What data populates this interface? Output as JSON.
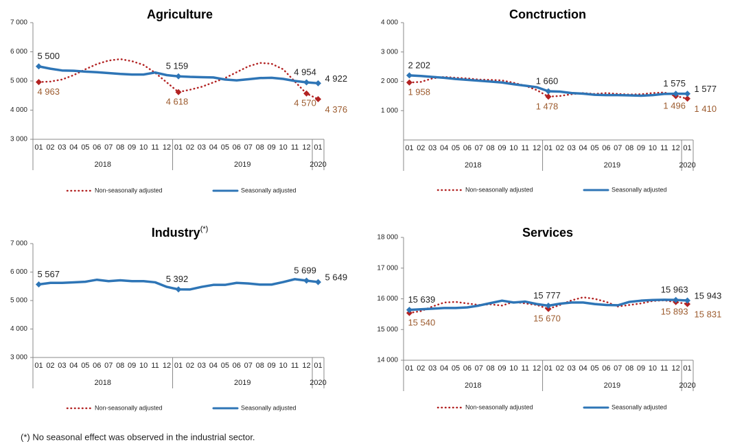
{
  "chart_data": [
    {
      "type": "line",
      "title": "Agriculture",
      "category_groups": [
        {
          "label": "2018",
          "categories": [
            "01",
            "02",
            "03",
            "04",
            "05",
            "06",
            "07",
            "08",
            "09",
            "10",
            "11",
            "12"
          ]
        },
        {
          "label": "2019",
          "categories": [
            "01",
            "02",
            "03",
            "04",
            "05",
            "06",
            "07",
            "08",
            "09",
            "10",
            "11",
            "12"
          ]
        },
        {
          "label": "2020",
          "categories": [
            "01"
          ]
        }
      ],
      "ylim": [
        3000,
        7000
      ],
      "yticks": [
        {
          "value": 3000,
          "label": "3 000"
        },
        {
          "value": 4000,
          "label": "4 000"
        },
        {
          "value": 5000,
          "label": "5 000"
        },
        {
          "value": 6000,
          "label": "6 000"
        },
        {
          "value": 7000,
          "label": "7 000"
        }
      ],
      "grid": false,
      "legend": "bottom",
      "series": [
        {
          "name": "Non-seasonally adjusted",
          "color": "#b22222",
          "style": "dotted",
          "label_color": "#9c5b2e",
          "values": [
            4963,
            4980,
            5050,
            5200,
            5400,
            5580,
            5700,
            5750,
            5680,
            5550,
            5280,
            4950,
            4618,
            4700,
            4800,
            4950,
            5100,
            5300,
            5500,
            5620,
            5590,
            5400,
            4980,
            4570,
            4376
          ],
          "value_labels": [
            "4 963",
            null,
            null,
            null,
            null,
            null,
            null,
            null,
            null,
            null,
            null,
            null,
            "4 618",
            null,
            null,
            null,
            null,
            null,
            null,
            null,
            null,
            null,
            null,
            "4 570",
            "4 376"
          ]
        },
        {
          "name": "Seasonally adjusted",
          "color": "#2e75b6",
          "style": "solid",
          "label_color": "#222222",
          "values": [
            5500,
            5420,
            5360,
            5350,
            5320,
            5300,
            5270,
            5240,
            5220,
            5220,
            5290,
            5200,
            5159,
            5140,
            5130,
            5120,
            5050,
            5020,
            5060,
            5100,
            5110,
            5070,
            5000,
            4954,
            4922
          ],
          "value_labels": [
            "5 500",
            null,
            null,
            null,
            null,
            null,
            null,
            null,
            null,
            null,
            null,
            null,
            "5 159",
            null,
            null,
            null,
            null,
            null,
            null,
            null,
            null,
            null,
            null,
            "4 954",
            "4 922"
          ]
        }
      ]
    },
    {
      "type": "line",
      "title": "Conctruction",
      "category_groups": [
        {
          "label": "2018",
          "categories": [
            "01",
            "02",
            "03",
            "04",
            "05",
            "06",
            "07",
            "08",
            "09",
            "10",
            "11",
            "12"
          ]
        },
        {
          "label": "2019",
          "categories": [
            "01",
            "02",
            "03",
            "04",
            "05",
            "06",
            "07",
            "08",
            "09",
            "10",
            "11",
            "12"
          ]
        },
        {
          "label": "2020",
          "categories": [
            "01"
          ]
        }
      ],
      "ylim": [
        0,
        4000
      ],
      "yticks": [
        {
          "value": 1000,
          "label": "1 000"
        },
        {
          "value": 2000,
          "label": "2 000"
        },
        {
          "value": 3000,
          "label": "3 000"
        },
        {
          "value": 4000,
          "label": "4 000"
        }
      ],
      "grid": false,
      "legend": "bottom",
      "series": [
        {
          "name": "Non-seasonally adjusted",
          "color": "#b22222",
          "style": "dotted",
          "label_color": "#9c5b2e",
          "values": [
            1958,
            1980,
            2100,
            2150,
            2120,
            2100,
            2060,
            2050,
            2030,
            1950,
            1850,
            1700,
            1478,
            1500,
            1560,
            1600,
            1570,
            1600,
            1570,
            1550,
            1560,
            1600,
            1620,
            1496,
            1410
          ],
          "value_labels": [
            "1 958",
            null,
            null,
            null,
            null,
            null,
            null,
            null,
            null,
            null,
            null,
            null,
            "1 478",
            null,
            null,
            null,
            null,
            null,
            null,
            null,
            null,
            null,
            null,
            "1 496",
            "1 410"
          ]
        },
        {
          "name": "Seasonally adjusted",
          "color": "#2e75b6",
          "style": "solid",
          "label_color": "#222222",
          "values": [
            2202,
            2180,
            2150,
            2120,
            2080,
            2050,
            2020,
            1990,
            1960,
            1900,
            1850,
            1800,
            1660,
            1650,
            1600,
            1580,
            1540,
            1530,
            1530,
            1520,
            1510,
            1530,
            1570,
            1575,
            1577
          ],
          "value_labels": [
            "2 202",
            null,
            null,
            null,
            null,
            null,
            null,
            null,
            null,
            null,
            null,
            null,
            "1 660",
            null,
            null,
            null,
            null,
            null,
            null,
            null,
            null,
            null,
            null,
            "1 575",
            "1 577"
          ]
        }
      ]
    },
    {
      "type": "line",
      "title": "Industry",
      "title_note": "(*)",
      "category_groups": [
        {
          "label": "2018",
          "categories": [
            "01",
            "02",
            "03",
            "04",
            "05",
            "06",
            "07",
            "08",
            "09",
            "10",
            "11",
            "12"
          ]
        },
        {
          "label": "2019",
          "categories": [
            "01",
            "02",
            "03",
            "04",
            "05",
            "06",
            "07",
            "08",
            "09",
            "10",
            "11",
            "12"
          ]
        },
        {
          "label": "2020",
          "categories": [
            "01"
          ]
        }
      ],
      "ylim": [
        3000,
        7000
      ],
      "yticks": [
        {
          "value": 3000,
          "label": "3 000"
        },
        {
          "value": 4000,
          "label": "4 000"
        },
        {
          "value": 5000,
          "label": "5 000"
        },
        {
          "value": 6000,
          "label": "6 000"
        },
        {
          "value": 7000,
          "label": "7 000"
        }
      ],
      "grid": false,
      "legend": "bottom",
      "series": [
        {
          "name": "Non-seasonally adjusted",
          "color": "#b22222",
          "style": "dotted",
          "label_color": "#9c5b2e",
          "values": [
            5567,
            5620,
            5620,
            5640,
            5660,
            5730,
            5680,
            5710,
            5680,
            5680,
            5640,
            5480,
            5392,
            5390,
            5480,
            5550,
            5550,
            5620,
            5600,
            5560,
            5560,
            5650,
            5750,
            5699,
            5649
          ],
          "value_labels": [
            null,
            null,
            null,
            null,
            null,
            null,
            null,
            null,
            null,
            null,
            null,
            null,
            null,
            null,
            null,
            null,
            null,
            null,
            null,
            null,
            null,
            null,
            null,
            null,
            null
          ]
        },
        {
          "name": "Seasonally adjusted",
          "color": "#2e75b6",
          "style": "solid",
          "label_color": "#222222",
          "values": [
            5567,
            5620,
            5620,
            5640,
            5660,
            5730,
            5680,
            5710,
            5680,
            5680,
            5640,
            5480,
            5392,
            5390,
            5480,
            5550,
            5550,
            5620,
            5600,
            5560,
            5560,
            5650,
            5750,
            5699,
            5649
          ],
          "value_labels": [
            "5 567",
            null,
            null,
            null,
            null,
            null,
            null,
            null,
            null,
            null,
            null,
            null,
            "5 392",
            null,
            null,
            null,
            null,
            null,
            null,
            null,
            null,
            null,
            null,
            "5 699",
            "5 649"
          ]
        }
      ]
    },
    {
      "type": "line",
      "title": "Services",
      "category_groups": [
        {
          "label": "2018",
          "categories": [
            "01",
            "02",
            "03",
            "04",
            "05",
            "06",
            "07",
            "08",
            "09",
            "10",
            "11",
            "12"
          ]
        },
        {
          "label": "2019",
          "categories": [
            "01",
            "02",
            "03",
            "04",
            "05",
            "06",
            "07",
            "08",
            "09",
            "10",
            "11",
            "12"
          ]
        },
        {
          "label": "2020",
          "categories": [
            "01"
          ]
        }
      ],
      "ylim": [
        14000,
        18000
      ],
      "yticks": [
        {
          "value": 14000,
          "label": "14 000"
        },
        {
          "value": 15000,
          "label": "15 000"
        },
        {
          "value": 16000,
          "label": "16 000"
        },
        {
          "value": 17000,
          "label": "17 000"
        },
        {
          "value": 18000,
          "label": "18 000"
        }
      ],
      "grid": false,
      "legend": "bottom",
      "series": [
        {
          "name": "Non-seasonally adjusted",
          "color": "#b22222",
          "style": "dotted",
          "label_color": "#9c5b2e",
          "values": [
            15540,
            15600,
            15750,
            15880,
            15900,
            15850,
            15800,
            15820,
            15780,
            15900,
            15850,
            15800,
            15670,
            15800,
            15950,
            16050,
            16000,
            15900,
            15750,
            15800,
            15850,
            15930,
            15950,
            15893,
            15831
          ],
          "value_labels": [
            "15 540",
            null,
            null,
            null,
            null,
            null,
            null,
            null,
            null,
            null,
            null,
            null,
            "15 670",
            null,
            null,
            null,
            null,
            null,
            null,
            null,
            null,
            null,
            null,
            "15 893",
            "15 831"
          ]
        },
        {
          "name": "Seasonally adjusted",
          "color": "#2e75b6",
          "style": "solid",
          "label_color": "#222222",
          "values": [
            15639,
            15660,
            15680,
            15700,
            15700,
            15720,
            15780,
            15860,
            15940,
            15880,
            15910,
            15830,
            15777,
            15840,
            15880,
            15880,
            15830,
            15800,
            15790,
            15900,
            15940,
            15960,
            15970,
            15963,
            15943
          ],
          "value_labels": [
            "15 639",
            null,
            null,
            null,
            null,
            null,
            null,
            null,
            null,
            null,
            null,
            null,
            "15 777",
            null,
            null,
            null,
            null,
            null,
            null,
            null,
            null,
            null,
            null,
            "15 963",
            "15 943"
          ]
        }
      ]
    }
  ],
  "footnote": "(*) No seasonal effect was observed in the industrial sector."
}
